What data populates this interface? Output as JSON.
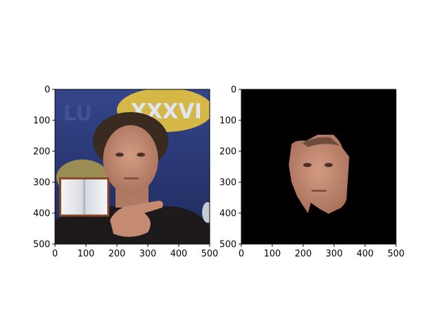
{
  "chart_data": [
    {
      "type": "image",
      "image": "photograph of a man pointing forward, XXXVI banner background",
      "xlim": [
        0,
        500
      ],
      "ylim": [
        500,
        0
      ],
      "x_ticks": [
        0,
        100,
        200,
        300,
        400,
        500
      ],
      "y_ticks": [
        0,
        100,
        200,
        300,
        400,
        500
      ],
      "grid": false
    },
    {
      "type": "image",
      "image": "segmented face on black background",
      "xlim": [
        0,
        500
      ],
      "ylim": [
        500,
        0
      ],
      "x_ticks": [
        0,
        100,
        200,
        300,
        400,
        500
      ],
      "y_ticks": [
        0,
        100,
        200,
        300,
        400,
        500
      ],
      "grid": false
    }
  ],
  "colors": {
    "background_left": "#2a3a78",
    "background_right": "#000000",
    "skin": "#c48a72",
    "hair": "#3b2a20",
    "shirt": "#1e1a1c",
    "logo_yellow": "#e8c440"
  }
}
